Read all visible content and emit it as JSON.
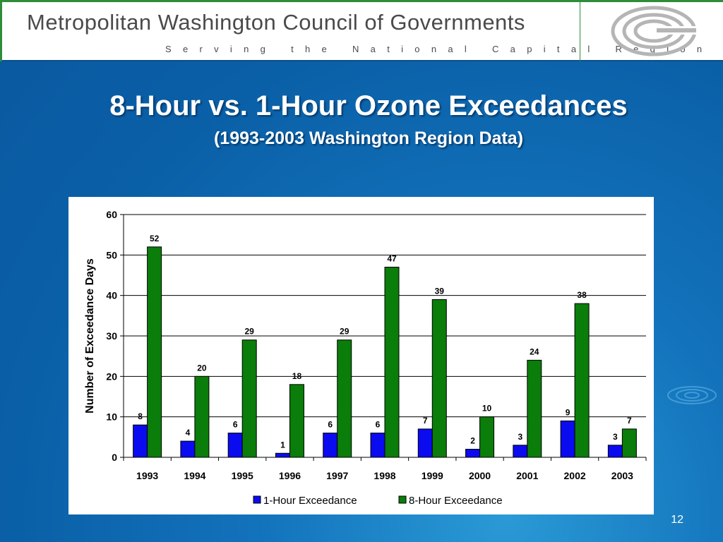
{
  "header": {
    "org_name": "Metropolitan Washington Council of Governments",
    "tagline": "Serving the National Capital Region"
  },
  "slide": {
    "title": "8-Hour vs. 1-Hour Ozone Exceedances",
    "subtitle": "(1993-2003 Washington Region Data)",
    "page_number": "12"
  },
  "colors": {
    "one_hour": "#0b0bf0",
    "eight_hour": "#0a7d0a",
    "background": "#0a5fa6"
  },
  "chart_data": {
    "type": "bar",
    "title": "",
    "xlabel": "",
    "ylabel": "Number of Exceedance Days",
    "ylim": [
      0,
      60
    ],
    "yticks": [
      0,
      10,
      20,
      30,
      40,
      50,
      60
    ],
    "grid": true,
    "legend": "bottom",
    "categories": [
      "1993",
      "1994",
      "1995",
      "1996",
      "1997",
      "1998",
      "1999",
      "2000",
      "2001",
      "2002",
      "2003"
    ],
    "series": [
      {
        "name": "1-Hour Exceedance",
        "values": [
          8,
          4,
          6,
          1,
          6,
          6,
          7,
          2,
          3,
          9,
          3
        ]
      },
      {
        "name": "8-Hour Exceedance",
        "values": [
          52,
          20,
          29,
          18,
          29,
          47,
          39,
          10,
          24,
          38,
          7
        ]
      }
    ]
  }
}
